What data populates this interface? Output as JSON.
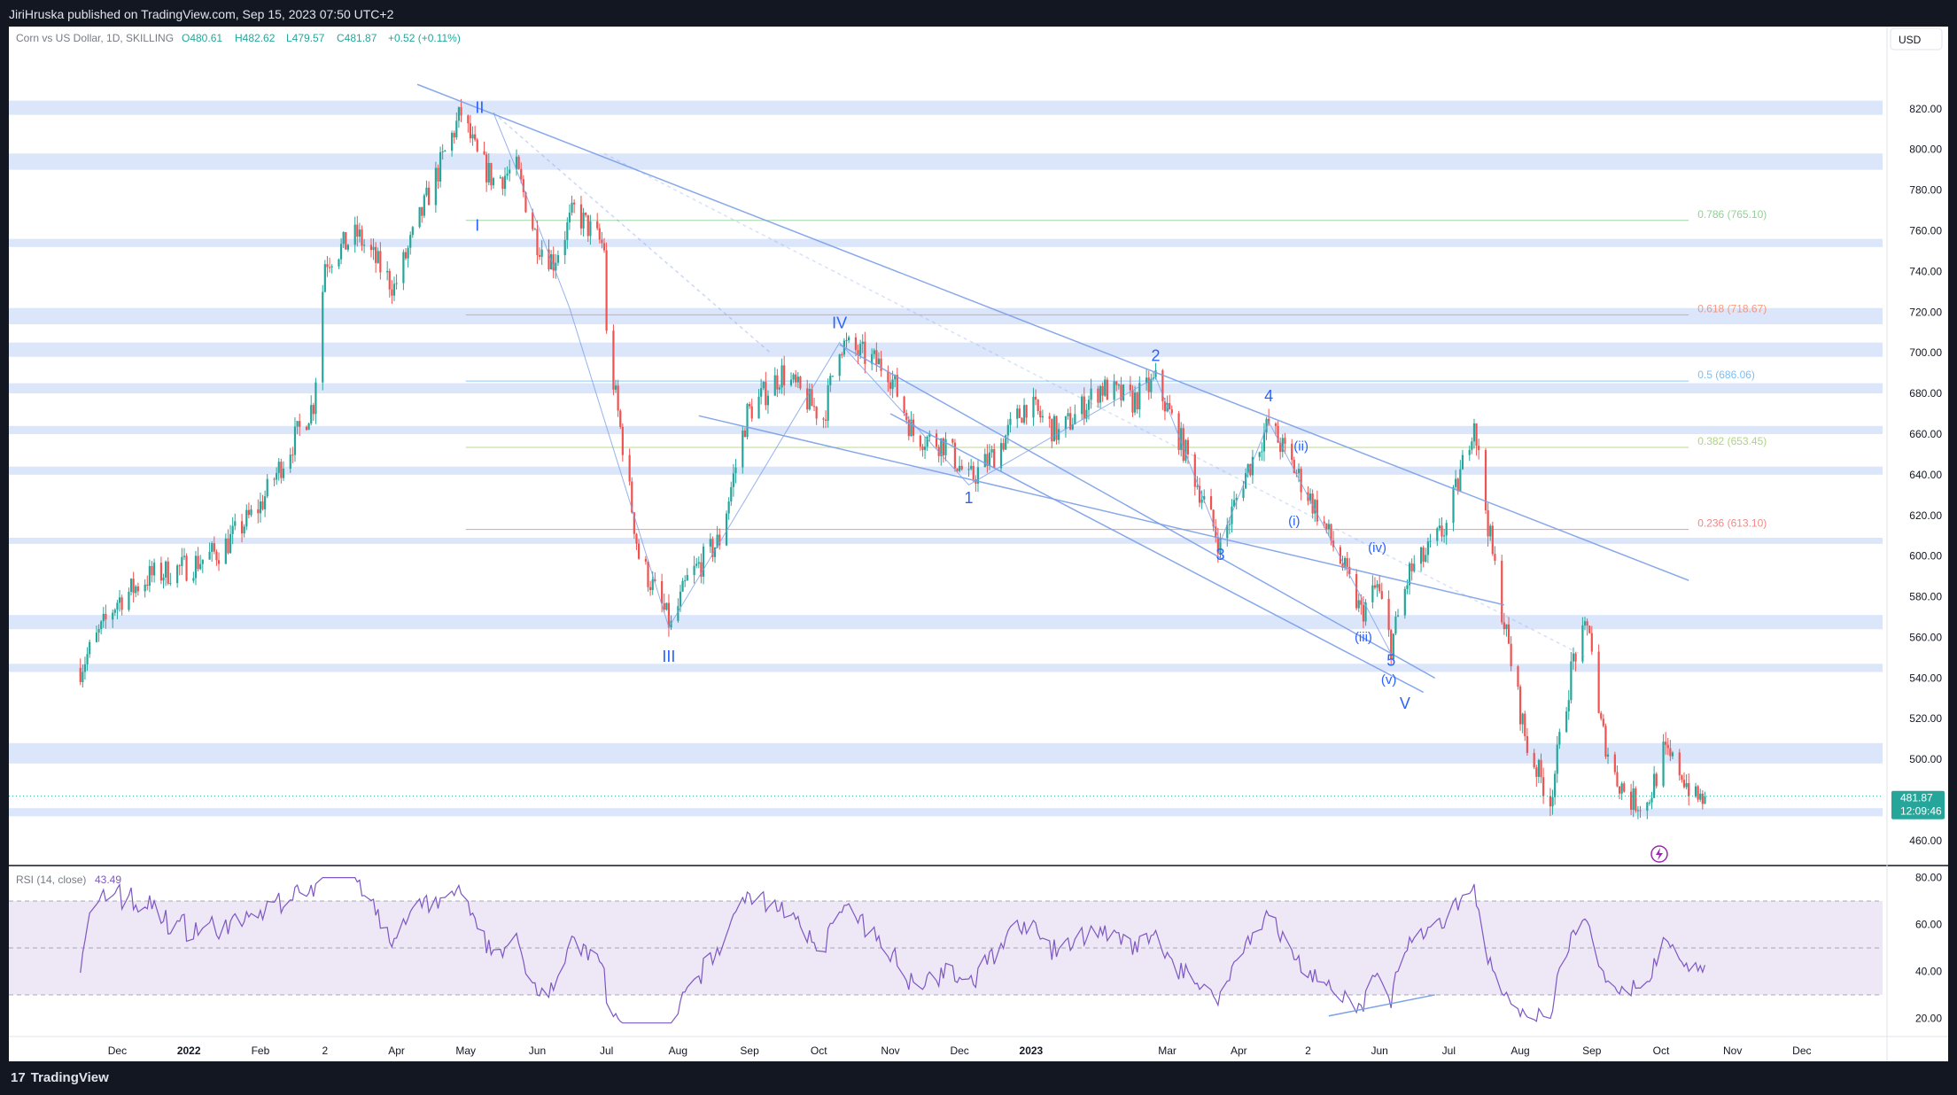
{
  "header": {
    "publisher": "JiriHruska published on TradingView.com, Sep 15, 2023 07:50 UTC+2"
  },
  "legend": {
    "symbol": "Corn vs US Dollar, 1D, SKILLING",
    "open": "O480.61",
    "high": "H482.62",
    "low": "L479.57",
    "close": "C481.87",
    "change": "+0.52 (+0.11%)"
  },
  "currency_button": "USD",
  "price_tag": {
    "price": "481.87",
    "countdown": "12:09:46"
  },
  "rsi_legend": {
    "name": "RSI (14, close)",
    "value": "43.49"
  },
  "footer": {
    "logo_text": "TradingView",
    "logo_mark": "17"
  },
  "colors": {
    "up": "#26a69a",
    "down": "#ef5350",
    "zone": "#dbe6fb",
    "trendline": "#7b9fe8",
    "wave_label": "#2962ff",
    "rsi_line": "#7e57c2",
    "rsi_band": "#ede7f6"
  },
  "chart_data": {
    "type": "candlestick",
    "price_axis": {
      "ticks": [
        820,
        800,
        780,
        760,
        740,
        720,
        700,
        680,
        660,
        640,
        620,
        600,
        580,
        560,
        540,
        520,
        500,
        480,
        460
      ],
      "tick_labels": [
        "820.00",
        "800.00",
        "780.00",
        "760.00",
        "740.00",
        "720.00",
        "700.00",
        "680.00",
        "660.00",
        "640.00",
        "620.00",
        "600.00",
        "580.00",
        "560.00",
        "540.00",
        "520.00",
        "500.00",
        "480.00",
        "460.00"
      ],
      "range": [
        453,
        843
      ]
    },
    "time_axis": {
      "labels": [
        "Dec",
        "2022",
        "Feb",
        "2",
        "Apr",
        "May",
        "Jun",
        "Jul",
        "Aug",
        "Sep",
        "Oct",
        "Nov",
        "Dec",
        "2023",
        "Mar",
        "Apr",
        "2",
        "Jun",
        "Jul",
        "Aug",
        "Sep",
        "Oct",
        "Nov",
        "Dec"
      ],
      "bold": [
        "2022",
        "2023"
      ]
    },
    "price_path": [
      [
        "2021-11-15",
        545
      ],
      [
        "2021-12-01",
        578
      ],
      [
        "2021-12-15",
        590
      ],
      [
        "2022-01-01",
        595
      ],
      [
        "2022-01-15",
        603
      ],
      [
        "2022-02-01",
        625
      ],
      [
        "2022-02-10",
        645
      ],
      [
        "2022-02-24",
        675
      ],
      [
        "2022-03-01",
        745
      ],
      [
        "2022-03-15",
        758
      ],
      [
        "2022-03-31",
        732
      ],
      [
        "2022-04-15",
        778
      ],
      [
        "2022-04-29",
        818
      ],
      [
        "2022-05-06",
        796
      ],
      [
        "2022-05-13",
        785
      ],
      [
        "2022-05-23",
        790
      ],
      [
        "2022-06-01",
        755
      ],
      [
        "2022-06-08",
        745
      ],
      [
        "2022-06-17",
        770
      ],
      [
        "2022-06-30",
        752
      ],
      [
        "2022-07-01",
        708
      ],
      [
        "2022-07-08",
        655
      ],
      [
        "2022-07-15",
        600
      ],
      [
        "2022-07-29",
        565
      ],
      [
        "2022-08-05",
        588
      ],
      [
        "2022-08-19",
        608
      ],
      [
        "2022-08-31",
        670
      ],
      [
        "2022-09-15",
        690
      ],
      [
        "2022-10-03",
        668
      ],
      [
        "2022-10-10",
        705
      ],
      [
        "2022-10-31",
        692
      ],
      [
        "2022-11-11",
        660
      ],
      [
        "2022-11-25",
        655
      ],
      [
        "2022-12-05",
        637
      ],
      [
        "2022-12-16",
        650
      ],
      [
        "2022-12-30",
        675
      ],
      [
        "2023-01-13",
        660
      ],
      [
        "2023-01-31",
        683
      ],
      [
        "2023-02-14",
        676
      ],
      [
        "2023-02-24",
        686
      ],
      [
        "2023-03-10",
        648
      ],
      [
        "2023-03-24",
        605
      ],
      [
        "2023-04-03",
        638
      ],
      [
        "2023-04-14",
        665
      ],
      [
        "2023-04-24",
        645
      ],
      [
        "2023-05-05",
        622
      ],
      [
        "2023-05-15",
        598
      ],
      [
        "2023-05-24",
        572
      ],
      [
        "2023-05-31",
        585
      ],
      [
        "2023-06-06",
        556
      ],
      [
        "2023-06-14",
        592
      ],
      [
        "2023-06-21",
        600
      ],
      [
        "2023-06-30",
        615
      ],
      [
        "2023-07-06",
        640
      ],
      [
        "2023-07-12",
        668
      ],
      [
        "2023-07-14",
        648
      ],
      [
        "2023-07-20",
        600
      ],
      [
        "2023-07-28",
        548
      ],
      [
        "2023-08-04",
        506
      ],
      [
        "2023-08-14",
        480
      ],
      [
        "2023-08-24",
        550
      ],
      [
        "2023-08-31",
        566
      ],
      [
        "2023-09-04",
        520
      ],
      [
        "2023-09-11",
        492
      ],
      [
        "2023-09-18",
        480
      ],
      [
        "2023-09-25",
        478
      ],
      [
        "2023-10-02",
        503
      ],
      [
        "2023-10-09",
        495
      ],
      [
        "2023-10-16",
        480
      ],
      [
        "2023-10-20",
        481.87
      ]
    ],
    "horizontal_zones": [
      [
        817,
        824
      ],
      [
        790,
        798
      ],
      [
        752,
        756
      ],
      [
        714,
        722
      ],
      [
        698,
        705
      ],
      [
        680,
        685
      ],
      [
        660,
        664
      ],
      [
        640,
        644
      ],
      [
        606,
        609
      ],
      [
        564,
        571
      ],
      [
        543,
        547
      ],
      [
        498,
        508
      ],
      [
        472,
        476
      ]
    ],
    "fibonacci": [
      {
        "label": "0.786 (765.10)",
        "value": 765.1,
        "color": "#66bb6a"
      },
      {
        "label": "0.618 (718.67)",
        "value": 718.67,
        "color": "#ff7043"
      },
      {
        "label": "0.5 (686.06)",
        "value": 686.06,
        "color": "#42a5f5"
      },
      {
        "label": "0.382 (653.45)",
        "value": 653.45,
        "color": "#8bc34a"
      },
      {
        "label": "0.236 (613.10)",
        "value": 613.1,
        "color": "#ef5350"
      }
    ],
    "wave_labels": [
      {
        "text": "II",
        "date": "2022-05-07",
        "price": 818
      },
      {
        "text": "I",
        "date": "2022-05-06",
        "price": 760
      },
      {
        "text": "III",
        "date": "2022-07-28",
        "price": 548
      },
      {
        "text": "IV",
        "date": "2022-10-10",
        "price": 712
      },
      {
        "text": "1",
        "date": "2022-12-05",
        "price": 626
      },
      {
        "text": "2",
        "date": "2023-02-24",
        "price": 696
      },
      {
        "text": "3",
        "date": "2023-03-24",
        "price": 598
      },
      {
        "text": "4",
        "date": "2023-04-14",
        "price": 676
      },
      {
        "text": "5",
        "date": "2023-06-06",
        "price": 546
      },
      {
        "text": "V",
        "date": "2023-06-12",
        "price": 525
      },
      {
        "text": "(i)",
        "date": "2023-04-25",
        "price": 615
      },
      {
        "text": "(ii)",
        "date": "2023-04-28",
        "price": 652
      },
      {
        "text": "(iii)",
        "date": "2023-05-25",
        "price": 558
      },
      {
        "text": "(iv)",
        "date": "2023-05-31",
        "price": 602
      },
      {
        "text": "(v)",
        "date": "2023-06-05",
        "price": 537
      }
    ],
    "rsi_axis": {
      "ticks": [
        80,
        60,
        40,
        20
      ],
      "tick_labels": [
        "80.00",
        "60.00",
        "40.00",
        "20.00"
      ],
      "range": [
        16,
        84
      ],
      "band": [
        30,
        70
      ],
      "mid": 50
    },
    "last_price": 481.87
  }
}
